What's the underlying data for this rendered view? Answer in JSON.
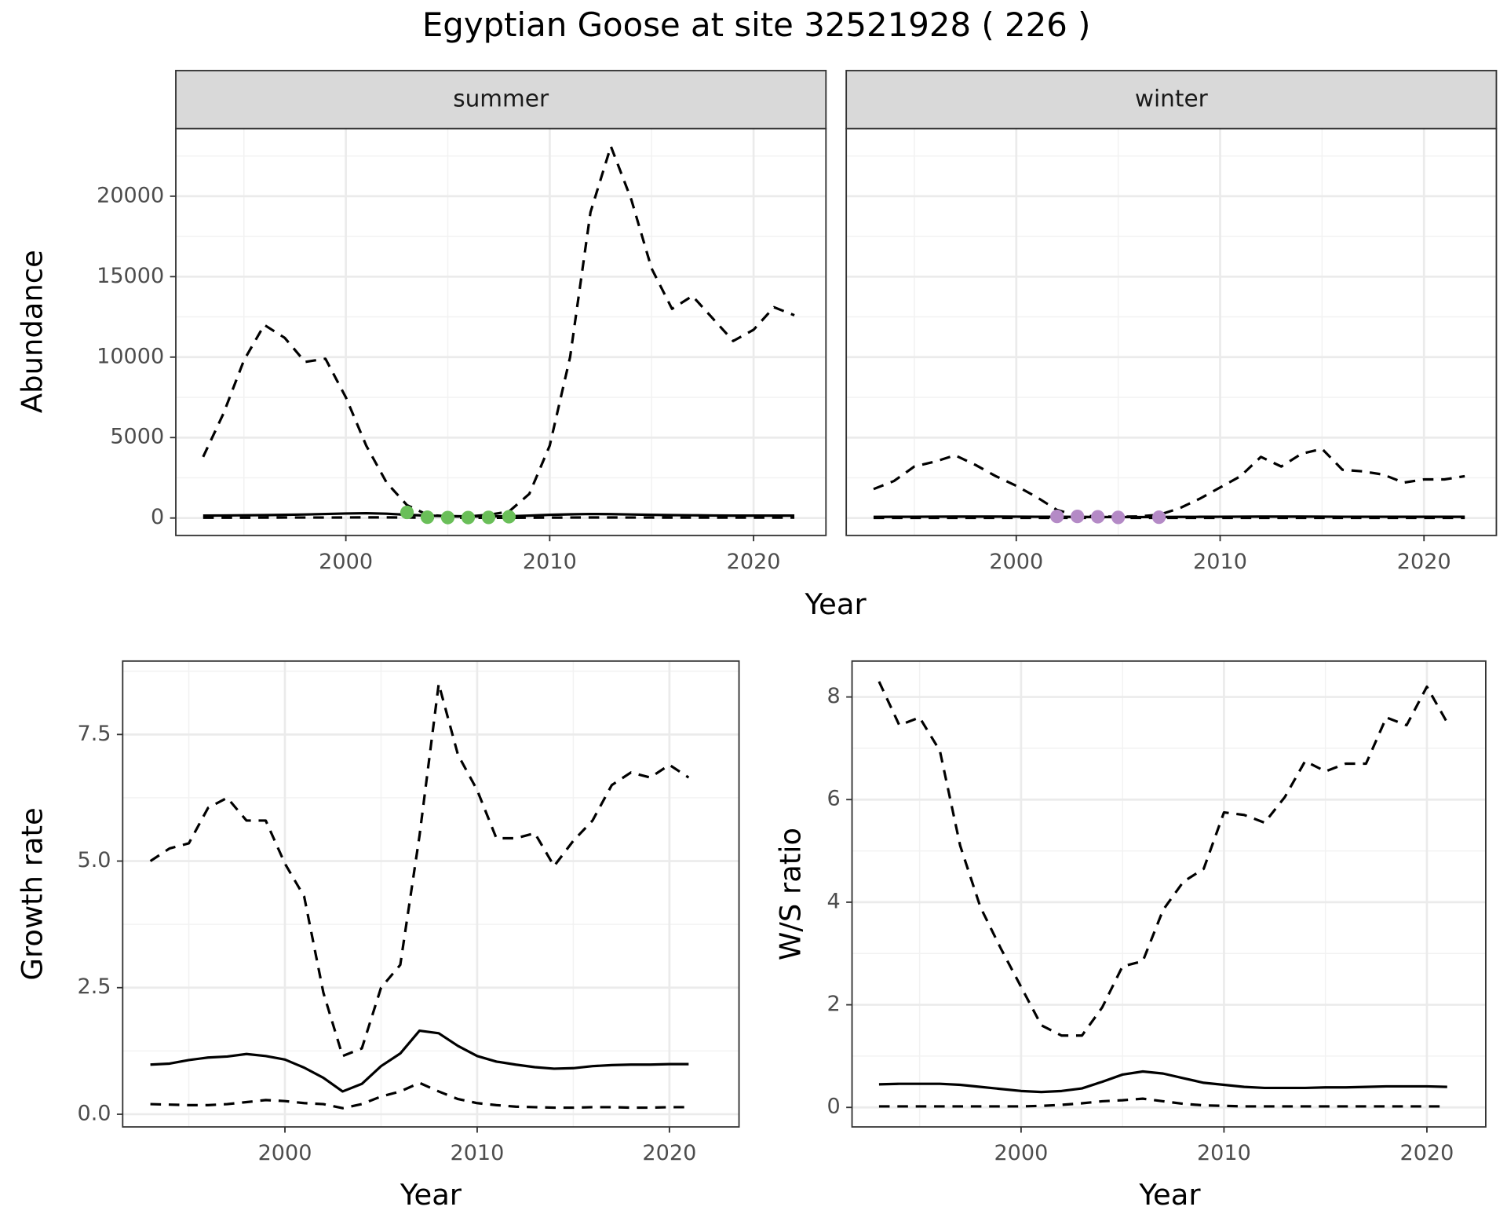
{
  "title": "Egyptian Goose at site 32521928 ( 226 )",
  "chart_data": [
    {
      "type": "line",
      "strip": "summer",
      "ylabel": "Abundance",
      "xlabel": "Year",
      "x": [
        1993,
        1994,
        1995,
        1996,
        1997,
        1998,
        1999,
        2000,
        2001,
        2002,
        2003,
        2004,
        2005,
        2006,
        2007,
        2008,
        2009,
        2010,
        2011,
        2012,
        2013,
        2014,
        2015,
        2016,
        2017,
        2018,
        2019,
        2020,
        2021,
        2022
      ],
      "xlim": [
        1991.66,
        2023.55
      ],
      "xticks": [
        2000,
        2010,
        2020
      ],
      "ylim": [
        -1081,
        24204
      ],
      "yticks": [
        0,
        5000,
        10000,
        15000,
        20000
      ],
      "ytick_labels": true,
      "grid": true,
      "series": [
        {
          "color": "#000000",
          "dash": true,
          "values": [
            3800,
            6500,
            9800,
            12000,
            11200,
            9700,
            9900,
            7500,
            4500,
            2200,
            800,
            200,
            100,
            100,
            200,
            400,
            1500,
            4500,
            10000,
            19000,
            23100,
            19800,
            15500,
            13000,
            13800,
            12400,
            11000,
            11700,
            13100,
            12600
          ]
        },
        {
          "color": "#000000",
          "dash": false,
          "values": [
            150,
            160,
            170,
            180,
            200,
            220,
            250,
            280,
            300,
            270,
            200,
            150,
            120,
            100,
            100,
            110,
            150,
            200,
            230,
            250,
            240,
            220,
            200,
            180,
            170,
            160,
            150,
            150,
            150,
            150
          ]
        },
        {
          "color": "#000000",
          "dash": true,
          "values": [
            20,
            20,
            20,
            25,
            30,
            30,
            30,
            35,
            40,
            40,
            30,
            20,
            15,
            15,
            15,
            15,
            20,
            25,
            30,
            35,
            35,
            30,
            30,
            25,
            25,
            25,
            25,
            25,
            25,
            25
          ]
        }
      ],
      "points": {
        "color": "#6abf59",
        "x": [
          2003,
          2004,
          2005,
          2006,
          2007,
          2008
        ],
        "values": [
          350,
          50,
          30,
          30,
          40,
          80
        ]
      }
    },
    {
      "type": "line",
      "strip": "winter",
      "x": [
        1993,
        1994,
        1995,
        1996,
        1997,
        1998,
        1999,
        2000,
        2001,
        2002,
        2003,
        2004,
        2005,
        2006,
        2007,
        2008,
        2009,
        2010,
        2011,
        2012,
        2013,
        2014,
        2015,
        2016,
        2017,
        2018,
        2019,
        2020,
        2021,
        2022
      ],
      "xlim": [
        1991.66,
        2023.55
      ],
      "xticks": [
        2000,
        2010,
        2020
      ],
      "ylim": [
        -1081,
        24204
      ],
      "yticks": [
        0,
        5000,
        10000,
        15000,
        20000
      ],
      "ytick_labels": false,
      "grid": true,
      "series": [
        {
          "color": "#000000",
          "dash": true,
          "values": [
            1800,
            2300,
            3200,
            3500,
            3900,
            3300,
            2600,
            2000,
            1300,
            500,
            150,
            100,
            80,
            100,
            200,
            600,
            1200,
            1900,
            2600,
            3800,
            3200,
            4000,
            4300,
            3000,
            2900,
            2700,
            2200,
            2400,
            2400,
            2600
          ]
        },
        {
          "color": "#000000",
          "dash": false,
          "values": [
            70,
            75,
            80,
            85,
            90,
            90,
            90,
            85,
            80,
            75,
            70,
            65,
            60,
            60,
            65,
            70,
            75,
            80,
            85,
            90,
            90,
            90,
            85,
            80,
            80,
            80,
            75,
            75,
            75,
            75
          ]
        },
        {
          "color": "#000000",
          "dash": true,
          "values": [
            10,
            10,
            10,
            10,
            10,
            10,
            10,
            10,
            10,
            10,
            10,
            10,
            10,
            10,
            10,
            10,
            10,
            10,
            10,
            10,
            10,
            10,
            10,
            10,
            10,
            10,
            10,
            10,
            10,
            10
          ]
        }
      ],
      "points": {
        "color": "#b48ac6",
        "x": [
          2002,
          2003,
          2004,
          2005,
          2007
        ],
        "values": [
          100,
          100,
          80,
          40,
          50
        ]
      }
    },
    {
      "type": "line",
      "ylabel": "Growth rate",
      "xlabel": "Year",
      "x": [
        1993,
        1994,
        1995,
        1996,
        1997,
        1998,
        1999,
        2000,
        2001,
        2002,
        2003,
        2004,
        2005,
        2006,
        2007,
        2008,
        2009,
        2010,
        2011,
        2012,
        2013,
        2014,
        2015,
        2016,
        2017,
        2018,
        2019,
        2020,
        2021
      ],
      "xlim": [
        1991.56,
        2023.62
      ],
      "xticks": [
        2000,
        2010,
        2020
      ],
      "ylim": [
        -0.25,
        8.95
      ],
      "yticks": [
        {
          "value": 0,
          "label": "0.0"
        },
        2.5,
        {
          "value": 5,
          "label": "5.0"
        },
        7.5
      ],
      "ytick_labels": true,
      "grid": true,
      "series": [
        {
          "color": "#000000",
          "dash": true,
          "values": [
            5.0,
            5.25,
            5.35,
            6.05,
            6.25,
            5.8,
            5.8,
            4.95,
            4.3,
            2.4,
            1.15,
            1.3,
            2.5,
            2.95,
            5.5,
            8.5,
            7.1,
            6.4,
            5.45,
            5.45,
            5.55,
            4.9,
            5.4,
            5.8,
            6.5,
            6.75,
            6.65,
            6.9,
            6.65
          ]
        },
        {
          "color": "#000000",
          "dash": false,
          "values": [
            0.98,
            1.0,
            1.07,
            1.12,
            1.14,
            1.19,
            1.15,
            1.08,
            0.92,
            0.72,
            0.45,
            0.6,
            0.95,
            1.2,
            1.65,
            1.6,
            1.35,
            1.15,
            1.04,
            0.98,
            0.93,
            0.9,
            0.91,
            0.95,
            0.97,
            0.98,
            0.98,
            0.99,
            0.99
          ]
        },
        {
          "color": "#000000",
          "dash": true,
          "values": [
            0.2,
            0.19,
            0.18,
            0.18,
            0.2,
            0.24,
            0.28,
            0.26,
            0.22,
            0.2,
            0.12,
            0.2,
            0.35,
            0.45,
            0.62,
            0.45,
            0.3,
            0.22,
            0.18,
            0.15,
            0.14,
            0.13,
            0.13,
            0.14,
            0.14,
            0.13,
            0.13,
            0.14,
            0.14
          ]
        }
      ]
    },
    {
      "type": "line",
      "ylabel": "W/S ratio",
      "xlabel": "Year",
      "x": [
        1993,
        1994,
        1995,
        1996,
        1997,
        1998,
        1999,
        2000,
        2001,
        2002,
        2003,
        2004,
        2005,
        2006,
        2007,
        2008,
        2009,
        2010,
        2011,
        2012,
        2013,
        2014,
        2015,
        2016,
        2017,
        2018,
        2019,
        2020,
        2021
      ],
      "xlim": [
        1991.67,
        2022.9
      ],
      "xticks": [
        2000,
        2010,
        2020
      ],
      "ylim": [
        -0.38,
        8.7
      ],
      "yticks": [
        0,
        2,
        4,
        6,
        8
      ],
      "ytick_labels": true,
      "grid": true,
      "series": [
        {
          "color": "#000000",
          "dash": true,
          "values": [
            8.3,
            7.45,
            7.6,
            6.95,
            5.1,
            3.9,
            3.1,
            2.35,
            1.6,
            1.4,
            1.4,
            1.95,
            2.75,
            2.85,
            3.85,
            4.4,
            4.65,
            5.75,
            5.7,
            5.55,
            6.05,
            6.75,
            6.55,
            6.7,
            6.7,
            7.6,
            7.45,
            8.2,
            7.5
          ]
        },
        {
          "color": "#000000",
          "dash": false,
          "values": [
            0.45,
            0.46,
            0.46,
            0.46,
            0.44,
            0.4,
            0.36,
            0.32,
            0.3,
            0.32,
            0.37,
            0.5,
            0.64,
            0.7,
            0.66,
            0.57,
            0.48,
            0.44,
            0.4,
            0.38,
            0.38,
            0.38,
            0.39,
            0.39,
            0.4,
            0.41,
            0.41,
            0.41,
            0.4
          ]
        },
        {
          "color": "#000000",
          "dash": true,
          "values": [
            0.02,
            0.02,
            0.02,
            0.02,
            0.02,
            0.02,
            0.02,
            0.02,
            0.03,
            0.05,
            0.08,
            0.12,
            0.14,
            0.17,
            0.12,
            0.07,
            0.04,
            0.03,
            0.02,
            0.02,
            0.02,
            0.02,
            0.02,
            0.02,
            0.02,
            0.02,
            0.02,
            0.02,
            0.02
          ]
        }
      ]
    }
  ]
}
